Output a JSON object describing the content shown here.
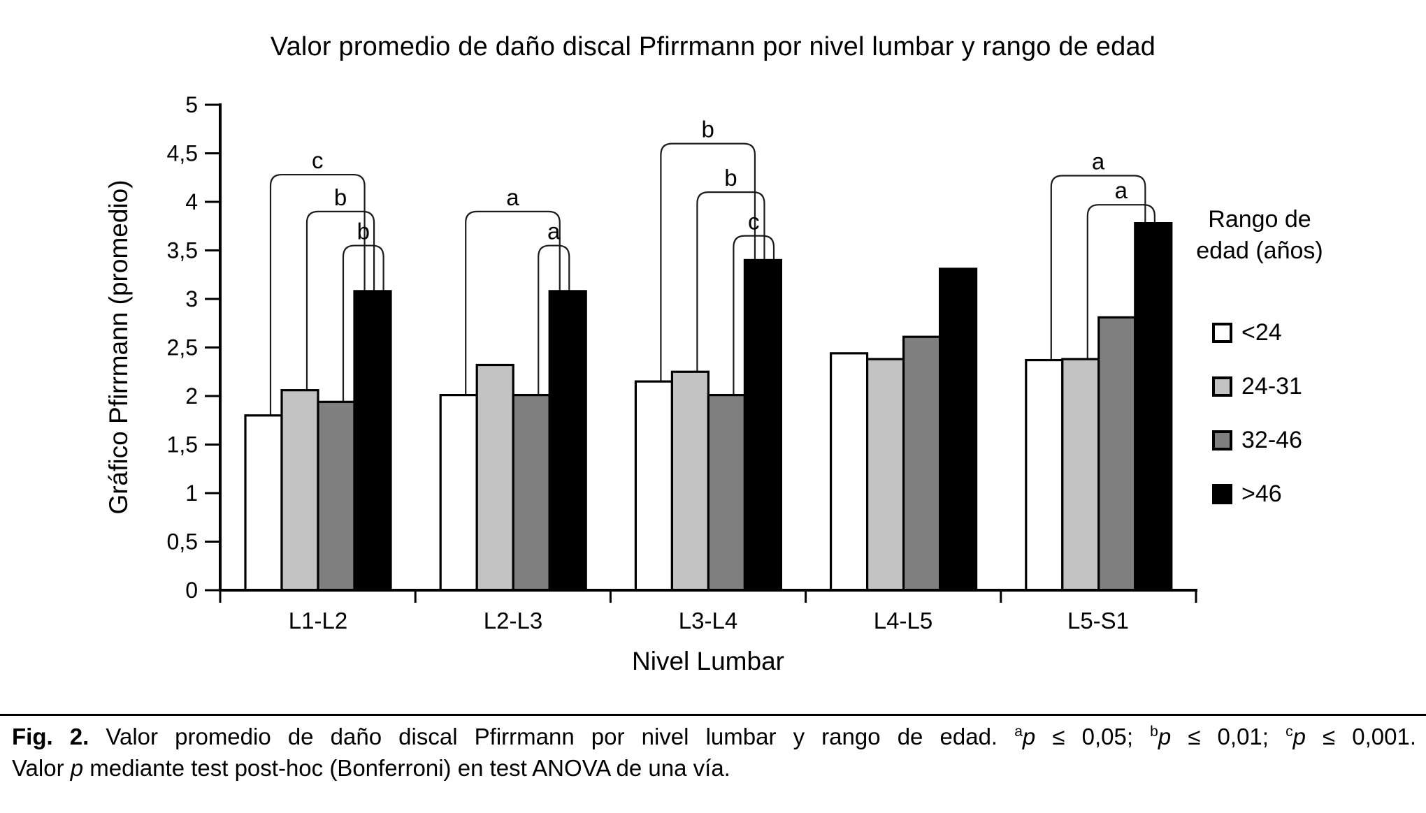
{
  "chart_data": {
    "type": "bar",
    "title": "Valor promedio de daño discal Pfirrmann por nivel lumbar y rango de edad",
    "xlabel": "Nivel Lumbar",
    "ylabel": "Gráfico Pfirrmann (promedio)",
    "ylim": [
      0,
      5
    ],
    "ytick_step": 0.5,
    "y_ticks": [
      "0",
      "0,5",
      "1",
      "1,5",
      "2",
      "2,5",
      "3",
      "3,5",
      "4",
      "4,5",
      "5"
    ],
    "grid": "off",
    "categories": [
      "L1-L2",
      "L2-L3",
      "L3-L4",
      "L4-L5",
      "L5-S1"
    ],
    "series": [
      {
        "name": "<24",
        "color": "#ffffff",
        "values": [
          1.8,
          2.01,
          2.15,
          2.44,
          2.37
        ]
      },
      {
        "name": "24-31",
        "color": "#c3c3c3",
        "values": [
          2.06,
          2.32,
          2.25,
          2.38,
          2.38
        ]
      },
      {
        "name": "32-46",
        "color": "#7f7f7f",
        "values": [
          1.94,
          2.01,
          2.01,
          2.61,
          2.81
        ]
      },
      {
        "name": ">46",
        "color": "#000000",
        "values": [
          3.08,
          3.08,
          3.4,
          3.31,
          3.78
        ]
      }
    ],
    "legend": {
      "title": "Rango de edad (años)",
      "position": "right"
    },
    "brackets": [
      {
        "group": 0,
        "from_series": 0,
        "to_series": 3,
        "label": "c",
        "height": 4.28
      },
      {
        "group": 0,
        "from_series": 1,
        "to_series": 3,
        "label": "b",
        "height": 3.9
      },
      {
        "group": 0,
        "from_series": 2,
        "to_series": 3,
        "label": "b",
        "height": 3.55
      },
      {
        "group": 1,
        "from_series": 0,
        "to_series": 3,
        "label": "a",
        "height": 3.9
      },
      {
        "group": 1,
        "from_series": 2,
        "to_series": 3,
        "label": "a",
        "height": 3.55
      },
      {
        "group": 2,
        "from_series": 0,
        "to_series": 3,
        "label": "b",
        "height": 4.6
      },
      {
        "group": 2,
        "from_series": 1,
        "to_series": 3,
        "label": "b",
        "height": 4.1
      },
      {
        "group": 2,
        "from_series": 2,
        "to_series": 3,
        "label": "c",
        "height": 3.65
      },
      {
        "group": 4,
        "from_series": 0,
        "to_series": 3,
        "label": "a",
        "height": 4.27
      },
      {
        "group": 4,
        "from_series": 1,
        "to_series": 3,
        "label": "a",
        "height": 3.97
      }
    ]
  },
  "caption": {
    "fig_label": "Fig. 2.",
    "body": "Valor promedio de daño discal Pfirrmann por nivel lumbar y rango de edad.",
    "p": "p",
    "sig_a_sup": "a",
    "sig_a_rest": " ≤ 0,05;",
    "sig_b_sup": "b",
    "sig_b_rest": " ≤ 0,01;",
    "sig_c_sup": "c",
    "sig_c_rest": " ≤ 0,001.",
    "line2_pre": "Valor",
    "line2_post": "mediante test post-hoc (Bonferroni) en test ANOVA de una vía."
  }
}
